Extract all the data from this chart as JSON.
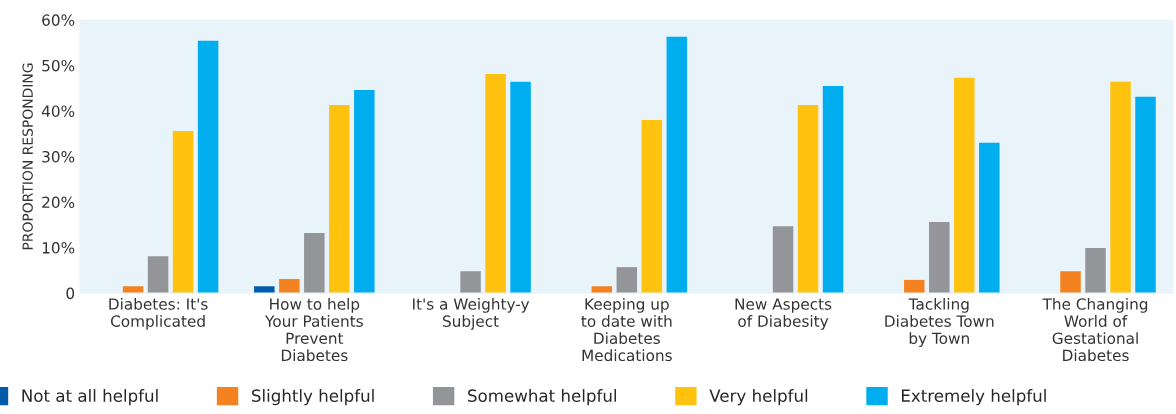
{
  "chart_data": {
    "type": "bar",
    "ylabel": "PROPORTION RESPONDING",
    "categories": [
      "Diabetes: It's\nComplicated",
      "How to help\nYour Patients\nPrevent\nDiabetes",
      "It's a Weighty-y\nSubject",
      "Keeping up\nto date with\nDiabetes\nMedications",
      "New Aspects\nof Diabesity",
      "Tackling\nDiabetes Town\nby Town",
      "The Changing\nWorld of\nGestational\nDiabetes"
    ],
    "series": [
      {
        "name": "Not at all helpful",
        "color": "#005baa",
        "values": [
          null,
          1.5,
          null,
          null,
          null,
          null,
          null
        ]
      },
      {
        "name": "Slightly helpful",
        "color": "#f58220",
        "values": [
          1.5,
          3.1,
          null,
          1.5,
          null,
          2.9,
          4.8
        ]
      },
      {
        "name": "Somewhat helpful",
        "color": "#939598",
        "values": [
          8.1,
          13.2,
          4.8,
          5.7,
          14.7,
          15.6,
          9.9
        ]
      },
      {
        "name": "Very helpful",
        "color": "#ffc20e",
        "values": [
          35.6,
          41.3,
          48.1,
          38.0,
          41.3,
          47.3,
          46.4
        ]
      },
      {
        "name": "Extremely helpful",
        "color": "#00aeef",
        "values": [
          55.4,
          44.6,
          46.4,
          56.3,
          45.5,
          33.0,
          43.1
        ]
      }
    ],
    "ylim": [
      0,
      60
    ],
    "yticks": [
      0,
      {
        "value": 10,
        "label": "10%"
      },
      {
        "value": 20,
        "label": "20%"
      },
      {
        "value": 30,
        "label": "30%"
      },
      {
        "value": 40,
        "label": "40%"
      },
      {
        "value": 50,
        "label": "50%"
      },
      {
        "value": 60,
        "label": "60%"
      }
    ],
    "legend": "bottom",
    "grid": false
  }
}
